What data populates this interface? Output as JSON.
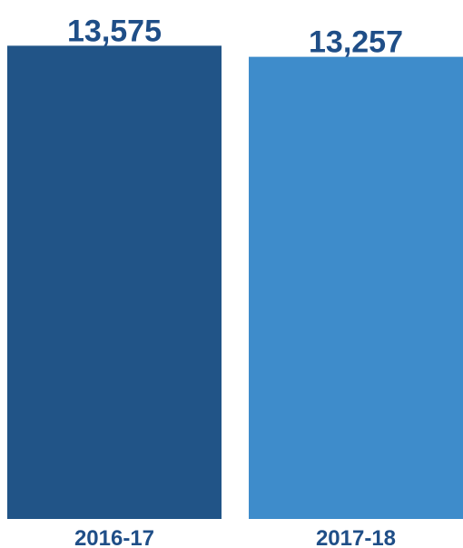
{
  "chart_data": {
    "type": "bar",
    "categories": [
      "2016-17",
      "2017-18"
    ],
    "values": [
      13575,
      13257
    ],
    "data_labels": [
      "13,575",
      "13,257"
    ],
    "colors": [
      "#215487",
      "#3e8ccb"
    ],
    "label_color": "#1f4e87",
    "title": "",
    "xlabel": "",
    "ylabel": "",
    "grid": false,
    "legend": "none"
  }
}
